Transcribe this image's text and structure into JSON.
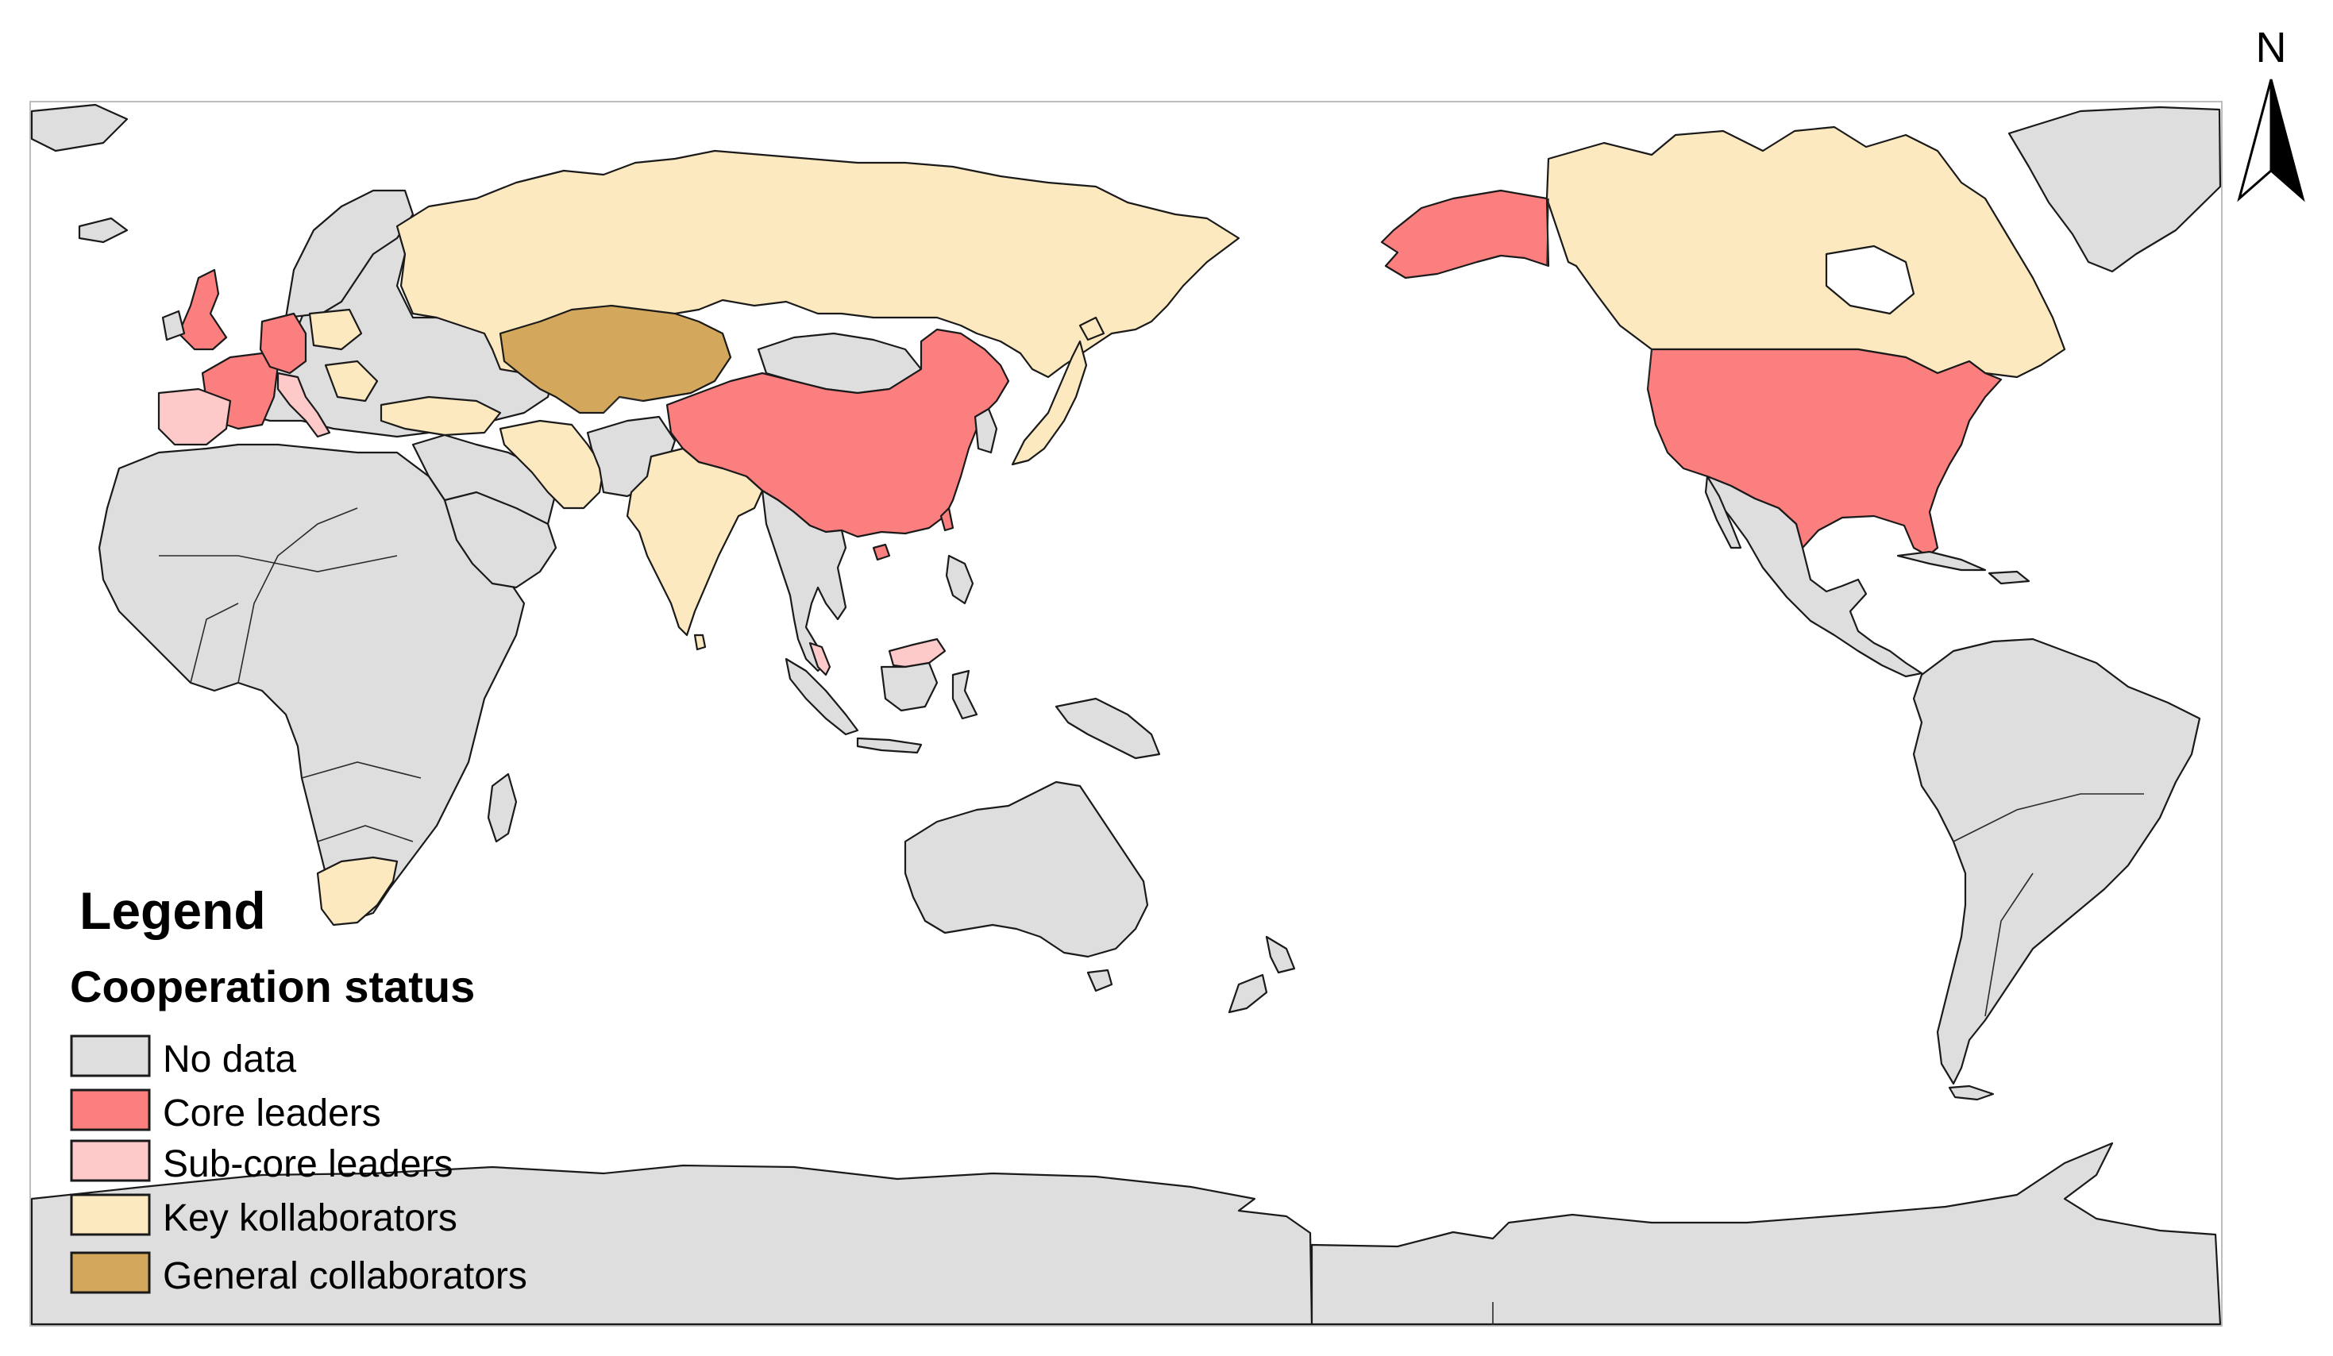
{
  "map": {
    "north_label": "N",
    "colors": {
      "no_data": "#dedede",
      "core": "#fc7f7f",
      "sub_core": "#fdc9c9",
      "key": "#fde9c0",
      "general": "#d4a85c",
      "ocean": "#ffffff",
      "outline": "#1a1a1a"
    }
  },
  "legend": {
    "title": "Legend",
    "subtitle": "Cooperation status",
    "items": [
      {
        "label": "No data",
        "color": "#dedede"
      },
      {
        "label": "Core leaders",
        "color": "#fc7f7f"
      },
      {
        "label": "Sub-core leaders",
        "color": "#fdc9c9"
      },
      {
        "label": "Key kollaborators",
        "color": "#fde9c0"
      },
      {
        "label": "General collaborators",
        "color": "#d4a85c"
      }
    ]
  }
}
